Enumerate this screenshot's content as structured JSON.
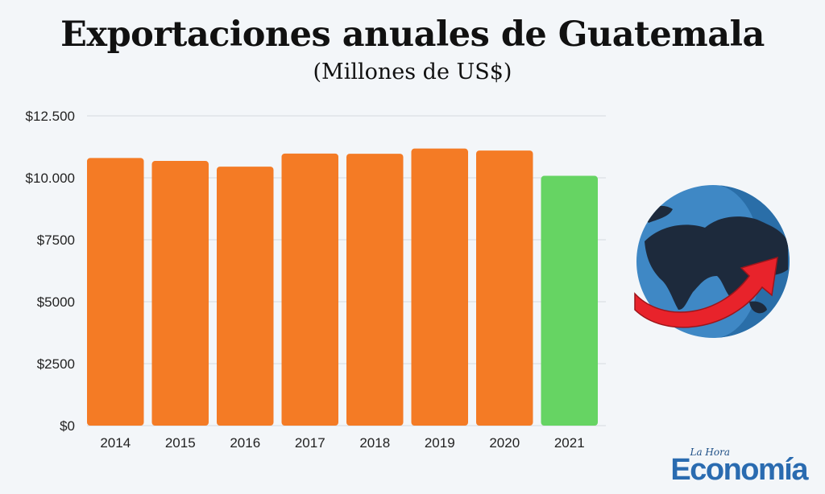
{
  "header": {
    "title": "Exportaciones anuales de Guatemala",
    "subtitle": "(Millones de US$)"
  },
  "brand": {
    "small": "La Hora",
    "big": "Economía"
  },
  "colors": {
    "bar": "#f47b25",
    "highlight": "#66d463",
    "grid": "#d5d9de",
    "text": "#222222"
  },
  "icons": [
    "globe-icon",
    "growth-arrow-icon"
  ],
  "chart_data": {
    "type": "bar",
    "title": "Exportaciones anuales de Guatemala",
    "subtitle": "(Millones de US$)",
    "categories": [
      "2014",
      "2015",
      "2016",
      "2017",
      "2018",
      "2019",
      "2020",
      "2021"
    ],
    "values": [
      10800,
      10680,
      10450,
      10980,
      10970,
      11180,
      11100,
      10080
    ],
    "highlight_index": 7,
    "ylim": [
      0,
      12500
    ],
    "yticks": [
      0,
      2500,
      5000,
      7500,
      10000,
      12500
    ],
    "ytick_labels": [
      "$0",
      "$2500",
      "$5000",
      "$7500",
      "$10.000",
      "$12.500"
    ],
    "grid": true,
    "xlabel": "",
    "ylabel": ""
  }
}
